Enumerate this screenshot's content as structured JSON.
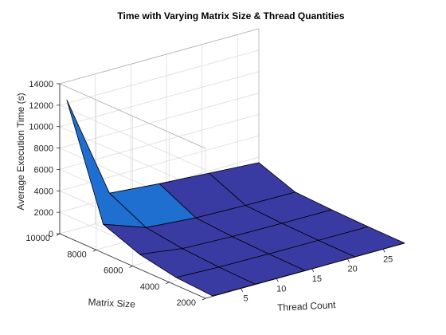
{
  "chart_data": {
    "type": "surface",
    "title": "Time with Varying Matrix Size & Thread Quantities",
    "xlabel": "Thread Count",
    "ylabel": "Matrix Size",
    "zlabel": "Average Execution Time (s)",
    "x": [
      1,
      7,
      14,
      21,
      28
    ],
    "y": [
      2000,
      4000,
      6000,
      8000,
      10000
    ],
    "z": [
      [
        40,
        30,
        20,
        15,
        12
      ],
      [
        250,
        120,
        60,
        45,
        40
      ],
      [
        900,
        350,
        180,
        130,
        110
      ],
      [
        2200,
        800,
        420,
        300,
        250
      ],
      [
        12300,
        2500,
        2100,
        1800,
        1500
      ]
    ],
    "xlim": [
      0,
      28
    ],
    "ylim": [
      2000,
      10000
    ],
    "zlim": [
      0,
      14000
    ],
    "xticks": [
      "5",
      "10",
      "15",
      "20",
      "25"
    ],
    "yticks": [
      "2000",
      "4000",
      "6000",
      "8000",
      "10000"
    ],
    "zticks": [
      "0",
      "2000",
      "4000",
      "6000",
      "8000",
      "10000",
      "12000",
      "14000"
    ],
    "grid": true,
    "colors": {
      "low": "#3a3aa3",
      "mid": "#1e6fd0",
      "high": "#2a9fe8"
    }
  }
}
